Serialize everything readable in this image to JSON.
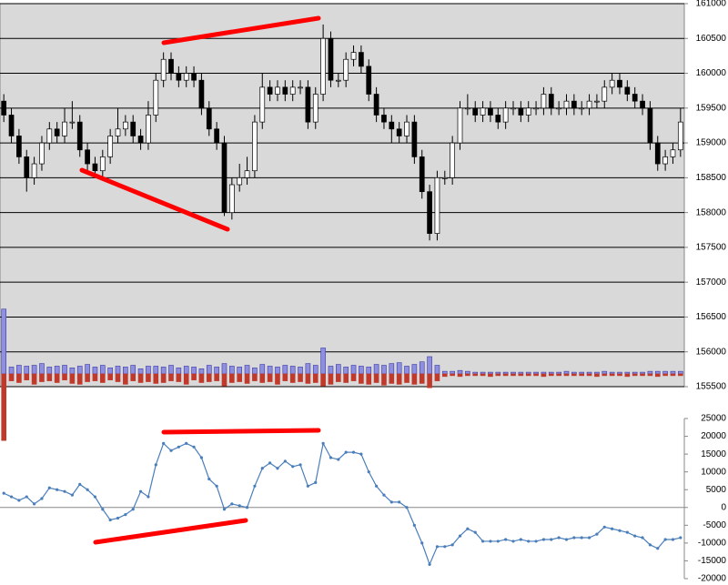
{
  "chart_data": [
    {
      "type": "candlestick",
      "ylim": [
        155500,
        161000
      ],
      "yticks": [
        155500,
        156000,
        156500,
        157000,
        157500,
        158000,
        158500,
        159000,
        159500,
        160000,
        160500,
        161000
      ],
      "grid": true,
      "open": [
        159600,
        159400,
        159100,
        158800,
        158500,
        158700,
        159000,
        159200,
        159100,
        159300,
        159300,
        158900,
        158700,
        158600,
        158800,
        159100,
        159200,
        159300,
        159100,
        159000,
        159400,
        159900,
        160200,
        160000,
        159900,
        160000,
        159900,
        159500,
        159200,
        159000,
        158000,
        158400,
        158500,
        158600,
        159300,
        159800,
        159700,
        159800,
        159700,
        159800,
        159800,
        159300,
        159700,
        160500,
        159900,
        159900,
        160200,
        160300,
        160100,
        159700,
        159400,
        159300,
        159200,
        159100,
        159300,
        158800,
        158300,
        157700,
        158500,
        158500,
        159000,
        159500,
        159500,
        159400,
        159500,
        159400,
        159300,
        159500,
        159500,
        159400,
        159500,
        159500,
        159700,
        159500,
        159500,
        159600,
        159500,
        159500,
        159600,
        159600,
        159800,
        159900,
        159800,
        159700,
        159600,
        159500,
        159000,
        158700,
        158800,
        158900
      ],
      "high": [
        159700,
        159500,
        159200,
        158900,
        158800,
        159100,
        159300,
        159300,
        159500,
        159600,
        159400,
        159000,
        158800,
        158900,
        159200,
        159500,
        159400,
        159400,
        159200,
        159600,
        160000,
        160300,
        160300,
        160100,
        160100,
        160100,
        160000,
        159600,
        159300,
        159100,
        158500,
        158700,
        158800,
        159400,
        160000,
        159900,
        159900,
        159900,
        159900,
        159900,
        159900,
        159800,
        160700,
        160600,
        160000,
        160300,
        160400,
        160400,
        160200,
        159800,
        159500,
        159400,
        159300,
        159400,
        159400,
        158900,
        158400,
        158600,
        158600,
        159100,
        159600,
        159700,
        159600,
        159600,
        159600,
        159500,
        159600,
        159600,
        159600,
        159600,
        159600,
        159800,
        159800,
        159600,
        159700,
        159700,
        159600,
        159700,
        159700,
        159900,
        160000,
        160000,
        159900,
        159800,
        159700,
        159600,
        159100,
        158900,
        159000,
        159500
      ],
      "low": [
        159300,
        159000,
        158700,
        158300,
        158400,
        158600,
        158900,
        159000,
        159000,
        159200,
        158800,
        158600,
        158500,
        158500,
        158700,
        159000,
        159100,
        159000,
        158900,
        158900,
        159300,
        159800,
        159900,
        159800,
        159800,
        159800,
        159400,
        159100,
        158900,
        157950,
        157900,
        158300,
        158400,
        158500,
        159200,
        159600,
        159600,
        159600,
        159600,
        159700,
        159200,
        159200,
        159600,
        159800,
        159800,
        159800,
        160100,
        160000,
        159600,
        159300,
        159200,
        159000,
        159000,
        159000,
        158700,
        158200,
        157600,
        157600,
        158400,
        158400,
        158900,
        159400,
        159300,
        159300,
        159300,
        159200,
        159200,
        159400,
        159300,
        159300,
        159400,
        159400,
        159400,
        159400,
        159400,
        159400,
        159400,
        159400,
        159500,
        159500,
        159700,
        159700,
        159600,
        159500,
        159400,
        158900,
        158600,
        158600,
        158700,
        158800
      ],
      "close": [
        159400,
        159100,
        158800,
        158500,
        158700,
        159000,
        159200,
        159100,
        159300,
        159300,
        158900,
        158700,
        158600,
        158800,
        159100,
        159200,
        159300,
        159100,
        159000,
        159400,
        159900,
        160200,
        160000,
        159900,
        160000,
        159900,
        159500,
        159200,
        159000,
        158000,
        158400,
        158500,
        158600,
        159300,
        159800,
        159700,
        159800,
        159700,
        159800,
        159800,
        159300,
        159700,
        160500,
        159900,
        159900,
        160200,
        160300,
        160100,
        159700,
        159400,
        159300,
        159200,
        159100,
        159300,
        158800,
        158300,
        157700,
        158500,
        158500,
        159000,
        159500,
        159500,
        159400,
        159500,
        159400,
        159300,
        159500,
        159500,
        159400,
        159500,
        159500,
        159700,
        159500,
        159500,
        159600,
        159500,
        159500,
        159600,
        159600,
        159800,
        159900,
        159800,
        159700,
        159600,
        159500,
        159000,
        158700,
        158800,
        158900,
        159300
      ],
      "volume": {
        "ylim": [
          -80,
          80
        ],
        "up": [
          75,
          8,
          10,
          9,
          10,
          12,
          8,
          9,
          10,
          7,
          9,
          11,
          8,
          10,
          7,
          9,
          8,
          10,
          6,
          9,
          9,
          8,
          10,
          7,
          9,
          8,
          6,
          10,
          8,
          12,
          9,
          8,
          10,
          7,
          11,
          9,
          8,
          10,
          9,
          8,
          12,
          10,
          30,
          9,
          11,
          8,
          10,
          9,
          8,
          11,
          10,
          12,
          13,
          9,
          11,
          14,
          20,
          10,
          3,
          3,
          4,
          3,
          2,
          2,
          2,
          2,
          2,
          2,
          2,
          2,
          2,
          2,
          2,
          2,
          3,
          2,
          2,
          2,
          2,
          3,
          2,
          2,
          2,
          2,
          2,
          3,
          3,
          3,
          3,
          3
        ],
        "down": [
          -77,
          -8,
          -10,
          -7,
          -12,
          -9,
          -8,
          -10,
          -7,
          -11,
          -12,
          -9,
          -8,
          -10,
          -7,
          -9,
          -12,
          -8,
          -10,
          -9,
          -11,
          -10,
          -8,
          -9,
          -12,
          -7,
          -10,
          -9,
          -8,
          -14,
          -10,
          -9,
          -11,
          -8,
          -10,
          -9,
          -12,
          -8,
          -10,
          -9,
          -11,
          -10,
          -14,
          -12,
          -9,
          -10,
          -8,
          -11,
          -12,
          -10,
          -13,
          -11,
          -12,
          -10,
          -12,
          -11,
          -16,
          -8,
          -3,
          -2,
          -3,
          -2,
          -2,
          -2,
          -3,
          -2,
          -2,
          -2,
          -2,
          -2,
          -2,
          -3,
          -2,
          -2,
          -2,
          -2,
          -2,
          -2,
          -3,
          -2,
          -2,
          -2,
          -3,
          -2,
          -2,
          -2,
          -3,
          -2,
          -2,
          -2
        ],
        "up_color": "#3a3aa8",
        "down_color": "#c0392b"
      }
    },
    {
      "type": "line",
      "ylim": [
        -20000,
        25000
      ],
      "yticks": [
        -20000,
        -15000,
        -10000,
        -5000,
        0,
        5000,
        10000,
        15000,
        20000,
        25000
      ],
      "color": "#4a7ebb",
      "values": [
        4000,
        3000,
        2000,
        3000,
        1000,
        2500,
        5500,
        5000,
        4500,
        3500,
        6500,
        5000,
        3000,
        -500,
        -3500,
        -3000,
        -2000,
        -500,
        4500,
        3000,
        12000,
        18000,
        16000,
        17000,
        18000,
        17000,
        14000,
        8000,
        6000,
        -500,
        1000,
        500,
        0,
        6000,
        11000,
        12500,
        11000,
        13000,
        11500,
        12000,
        6000,
        7000,
        18000,
        14000,
        13500,
        15500,
        15500,
        15000,
        10000,
        6000,
        3500,
        1500,
        1500,
        0,
        -5000,
        -10000,
        -16000,
        -11000,
        -11000,
        -10500,
        -8000,
        -6000,
        -7000,
        -9500,
        -9500,
        -9500,
        -9000,
        -9500,
        -9000,
        -9500,
        -9500,
        -9000,
        -9000,
        -8500,
        -9000,
        -8500,
        -8500,
        -8500,
        -7500,
        -5500,
        -6000,
        -6500,
        -7000,
        -8000,
        -8500,
        -10500,
        -11500,
        -9000,
        -9000,
        -8500
      ]
    }
  ]
}
